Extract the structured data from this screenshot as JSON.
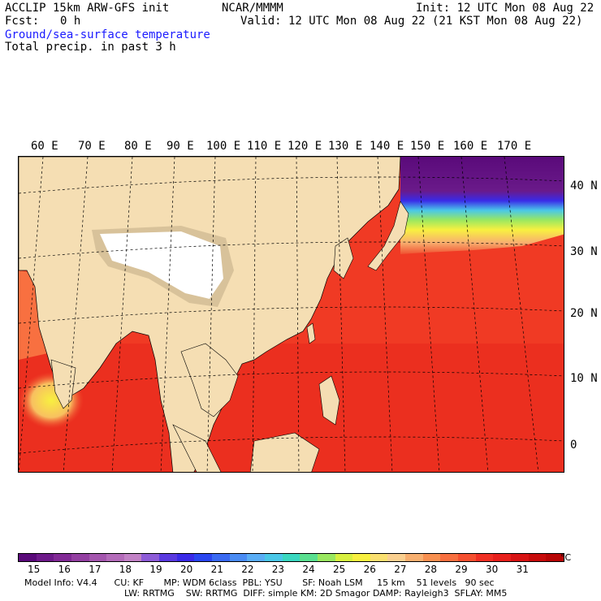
{
  "header": {
    "model": "ACCLIP 15km ARW-GFS init",
    "fcst_label": "Fcst:",
    "fcst_value": "0 h",
    "center": "NCAR/MMMM",
    "init": "Init: 12 UTC Mon 08 Aug 22",
    "valid": "Valid: 12 UTC Mon 08 Aug 22 (21 KST Mon 08 Aug 22)",
    "field1": "Ground/sea-surface temperature",
    "field2": "Total precip. in past 3 h"
  },
  "longitudes": [
    "60 E",
    "70 E",
    "80 E",
    "90 E",
    "100 E",
    "110 E",
    "120 E",
    "130 E",
    "140 E",
    "150 E",
    "160 E",
    "170 E"
  ],
  "latitudes": [
    "40 N",
    "30 N",
    "20 N",
    "10 N",
    "0"
  ],
  "colorbar": {
    "colors": [
      "#5a0a7a",
      "#6e1a8a",
      "#822a96",
      "#9440a2",
      "#a456ae",
      "#b46cba",
      "#c282c6",
      "#8e5cd8",
      "#5a3ae0",
      "#3a2ae8",
      "#2a46f0",
      "#3a6af2",
      "#4a8cf4",
      "#5aaef6",
      "#4ac8e8",
      "#3ad8c0",
      "#5ae090",
      "#9ae860",
      "#d8f040",
      "#f8f040",
      "#fae070",
      "#fad090",
      "#f8b070",
      "#f89050",
      "#f87040",
      "#f55030",
      "#f03024",
      "#e8201c",
      "#d81414",
      "#c80c0c",
      "#b80606"
    ],
    "ticks": [
      "15",
      "16",
      "17",
      "18",
      "19",
      "20",
      "21",
      "22",
      "23",
      "24",
      "25",
      "26",
      "27",
      "28",
      "29",
      "30",
      "31"
    ],
    "unit": "°C"
  },
  "model_info": {
    "line1": "Model Info: V4.4      CU: KF       MP: WDM 6class  PBL: YSU       SF: Noah LSM     15 km    51 levels   90 sec",
    "line2": "LW: RRTMG    SW: RRTMG  DIFF: simple KM: 2D Smagor DAMP: Rayleigh3  SFLAY: MM5"
  },
  "map_colors": {
    "land": "#f5deb3",
    "ocean_warm": "#f03a24",
    "ocean_hot": "#e8201c",
    "plateau": "#ffffff",
    "cold_sea": "#6a1a8a"
  }
}
